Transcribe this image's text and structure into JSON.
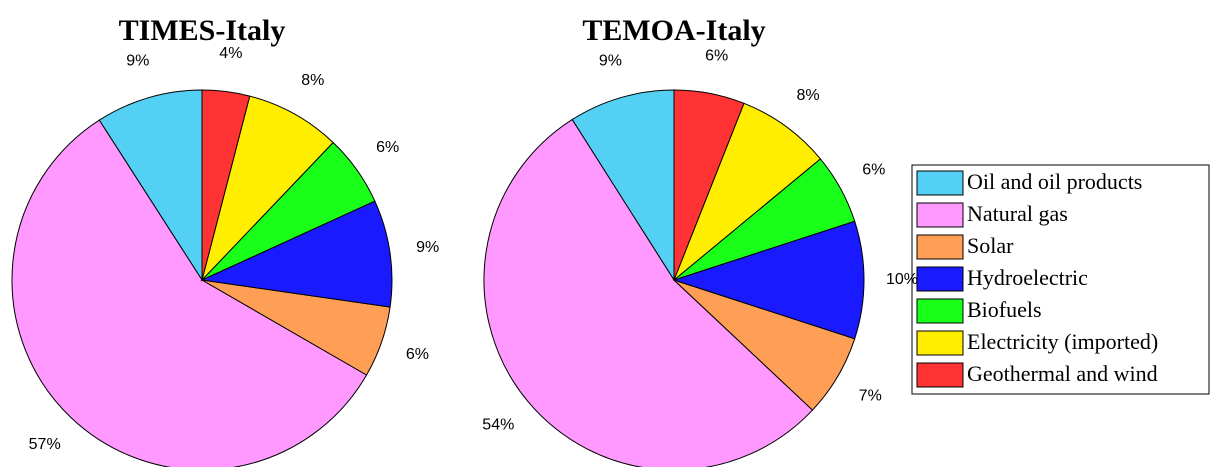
{
  "chart_data": [
    {
      "type": "pie",
      "title": "TIMES-Italy",
      "values": [
        9,
        57,
        6,
        9,
        6,
        8,
        4
      ],
      "value_labels": [
        "9%",
        "57%",
        "6%",
        "9%",
        "6%",
        "8%",
        "4%"
      ]
    },
    {
      "type": "pie",
      "title": "TEMOA-Italy",
      "values": [
        9,
        54,
        7,
        10,
        6,
        8,
        6
      ],
      "value_labels": [
        "9%",
        "54%",
        "7%",
        "10%",
        "6%",
        "8%",
        "6%"
      ]
    }
  ],
  "legend": {
    "position": "right",
    "labels": [
      "Oil and oil products",
      "Natural gas",
      "Solar",
      "Hydroelectric",
      "Biofuels",
      "Electricity (imported)",
      "Geothermal and wind"
    ],
    "colors": [
      "#55d0f5",
      "#ff99ff",
      "#ff9e55",
      "#1a1aff",
      "#1aff1a",
      "#ffee00",
      "#ff3333"
    ]
  }
}
